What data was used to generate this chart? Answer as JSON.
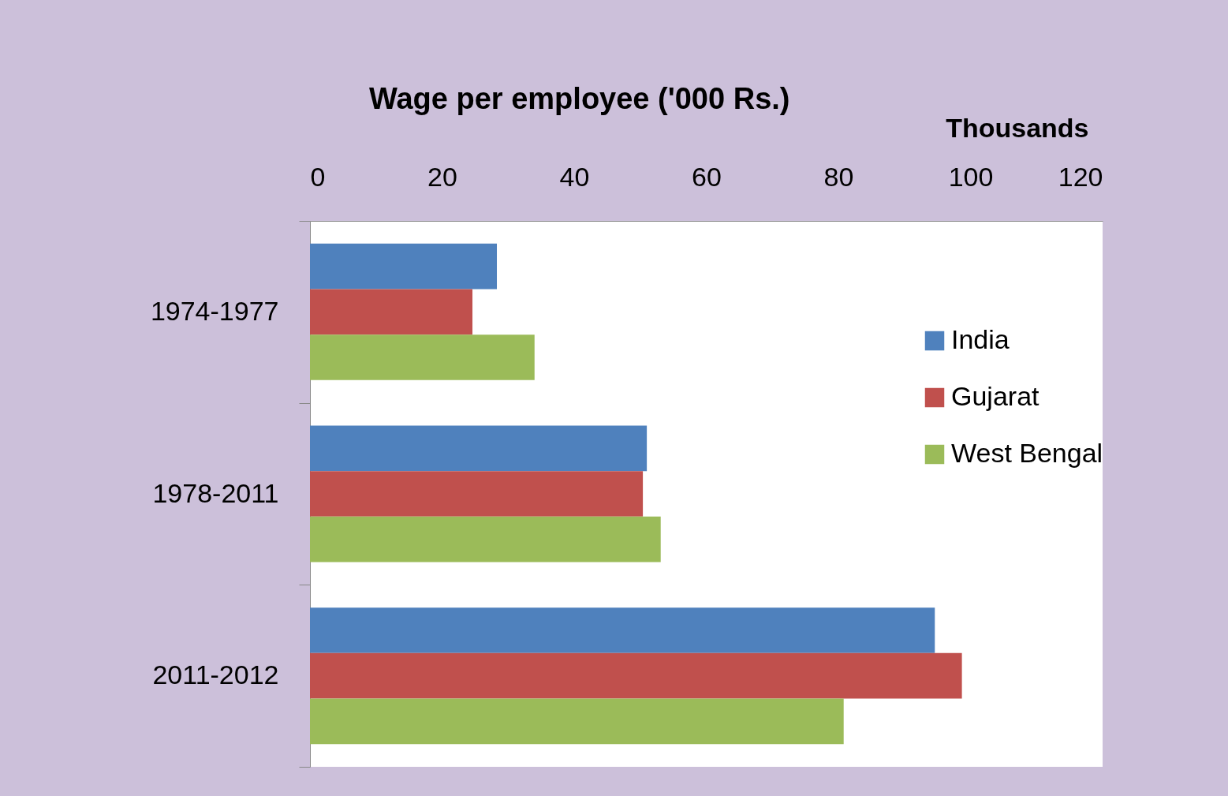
{
  "chart_data": {
    "type": "bar",
    "orientation": "horizontal",
    "title": "Wage per employee ('000 Rs.)",
    "xlabel": "Thousands",
    "categories": [
      "1974-1977",
      "1978-2011",
      "2011-2012"
    ],
    "series": [
      {
        "name": "India",
        "color": "#4f81bd",
        "values": [
          28.3,
          51.0,
          94.6
        ]
      },
      {
        "name": "Gujarat",
        "color": "#c0504d",
        "values": [
          24.6,
          50.4,
          98.7
        ]
      },
      {
        "name": "West Bengal",
        "color": "#9bbb59",
        "values": [
          34.0,
          53.1,
          80.8
        ]
      }
    ],
    "xlim": [
      0,
      120
    ],
    "xticks": [
      0,
      20,
      40,
      60,
      80,
      100,
      120
    ],
    "grid": false,
    "legend": "right"
  }
}
